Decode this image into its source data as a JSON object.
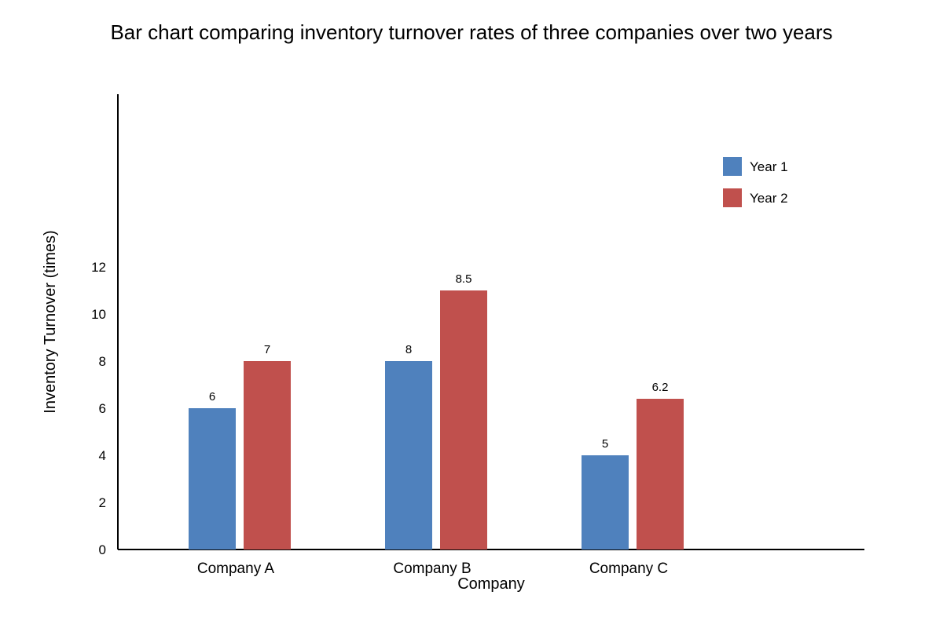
{
  "chart_data": {
    "type": "bar",
    "title": "Bar chart comparing inventory turnover rates of three companies over two years",
    "xlabel": "Company",
    "ylabel": "Inventory Turnover (times)",
    "categories": [
      "Company A",
      "Company B",
      "Company C"
    ],
    "series": [
      {
        "name": "Year 1",
        "values": [
          6,
          8,
          5
        ],
        "color": "#4f81bd"
      },
      {
        "name": "Year 2",
        "values": [
          7,
          8.5,
          6.2
        ],
        "color": "#c0504d"
      }
    ],
    "y_ticks": [
      "0",
      "2",
      "4",
      "6",
      "8",
      "10",
      "12"
    ],
    "ylim": [
      0,
      12
    ],
    "grid": false,
    "legend_position": "top-right"
  }
}
